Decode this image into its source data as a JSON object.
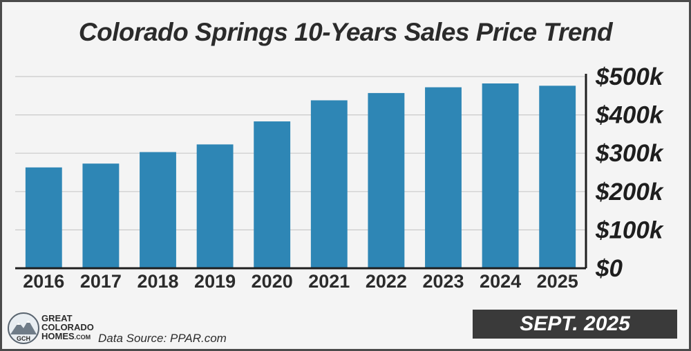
{
  "chart_data": {
    "type": "bar",
    "title": "Colorado Springs 10-Years Sales Price Trend",
    "categories": [
      "2016",
      "2017",
      "2018",
      "2019",
      "2020",
      "2021",
      "2022",
      "2023",
      "2024",
      "2025"
    ],
    "values": [
      263000,
      273000,
      303000,
      323000,
      383000,
      438000,
      457000,
      472000,
      482000,
      476000
    ],
    "ylim": [
      0,
      500000
    ],
    "y_ticks": [
      0,
      100000,
      200000,
      300000,
      400000,
      500000
    ],
    "y_tick_labels": [
      "$0",
      "$100k",
      "$200k",
      "$300k",
      "$400k",
      "$500k"
    ],
    "y_axis_position": "right",
    "grid": true,
    "bar_color": "#2e86b5",
    "xlabel": "",
    "ylabel": ""
  },
  "footer": {
    "logo_line1": "GREAT",
    "logo_line2": "COLORADO",
    "logo_line3_main": "HOMES",
    "logo_line3_suffix": ".COM",
    "logo_monogram": "GCH",
    "source": "Data Source: PPAR.com",
    "date_badge": "SEPT. 2025"
  },
  "colors": {
    "bar": "#2e86b5",
    "badge_bg": "#3a3a3a",
    "frame_border": "#4a4a4a",
    "background": "#f4f4f4"
  }
}
